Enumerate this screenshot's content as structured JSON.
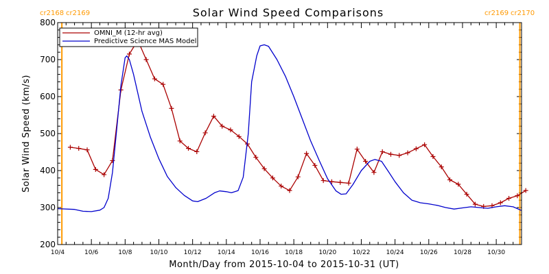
{
  "title": "Solar Wind Speed Comparisons",
  "cr_labels": {
    "left": [
      "cr2168",
      "cr2169"
    ],
    "right": [
      "cr2169",
      "cr2170"
    ]
  },
  "colors": {
    "omni": "#aa0000",
    "model": "#0000cc",
    "boundary": "#ff9900",
    "cr_text": "#ff9900",
    "axis": "#000000"
  },
  "chart_data": {
    "type": "line",
    "title": "Solar Wind Speed Comparisons",
    "xlabel": "Month/Day from 2015-10-04 to 2015-10-31 (UT)",
    "ylabel": "Solar Wind Speed (km/s)",
    "xlim": [
      0,
      27.5
    ],
    "ylim": [
      200,
      800
    ],
    "x_tick_values": [
      0,
      2,
      4,
      6,
      8,
      10,
      12,
      14,
      16,
      18,
      20,
      22,
      24,
      26
    ],
    "x_tick_labels": [
      "10/4",
      "10/6",
      "10/8",
      "10/10",
      "10/12",
      "10/14",
      "10/16",
      "10/18",
      "10/20",
      "10/22",
      "10/24",
      "10/26",
      "10/28",
      "10/30"
    ],
    "y_ticks": [
      200,
      300,
      400,
      500,
      600,
      700,
      800
    ],
    "y_minor_step": 20,
    "x_minor_step": 0.5,
    "vertical_markers": [
      0.25,
      27.4
    ],
    "legend": {
      "position": "top-left"
    },
    "series": [
      {
        "name": "OMNI_M (12-hr avg)",
        "style": "line-plus",
        "points": [
          [
            0.75,
            463
          ],
          [
            1.25,
            460
          ],
          [
            1.75,
            456
          ],
          [
            2.25,
            403
          ],
          [
            2.75,
            389
          ],
          [
            3.25,
            427
          ],
          [
            3.75,
            618
          ],
          [
            4.25,
            715
          ],
          [
            4.75,
            752
          ],
          [
            5.25,
            700
          ],
          [
            5.75,
            648
          ],
          [
            6.25,
            633
          ],
          [
            6.75,
            568
          ],
          [
            7.25,
            480
          ],
          [
            7.75,
            460
          ],
          [
            8.25,
            451
          ],
          [
            8.75,
            502
          ],
          [
            9.25,
            547
          ],
          [
            9.75,
            520
          ],
          [
            10.25,
            510
          ],
          [
            10.75,
            492
          ],
          [
            11.25,
            472
          ],
          [
            11.75,
            436
          ],
          [
            12.25,
            405
          ],
          [
            12.75,
            380
          ],
          [
            13.25,
            358
          ],
          [
            13.75,
            346
          ],
          [
            14.25,
            383
          ],
          [
            14.75,
            446
          ],
          [
            15.25,
            414
          ],
          [
            15.75,
            373
          ],
          [
            16.25,
            370
          ],
          [
            16.75,
            368
          ],
          [
            17.25,
            366
          ],
          [
            17.75,
            458
          ],
          [
            18.25,
            425
          ],
          [
            18.75,
            395
          ],
          [
            19.25,
            451
          ],
          [
            19.75,
            444
          ],
          [
            20.25,
            441
          ],
          [
            20.75,
            448
          ],
          [
            21.25,
            459
          ],
          [
            21.75,
            470
          ],
          [
            22.25,
            438
          ],
          [
            22.75,
            410
          ],
          [
            23.25,
            375
          ],
          [
            23.75,
            363
          ],
          [
            24.25,
            336
          ],
          [
            24.75,
            309
          ],
          [
            25.25,
            303
          ],
          [
            25.75,
            305
          ],
          [
            26.25,
            313
          ],
          [
            26.75,
            325
          ],
          [
            27.25,
            332
          ],
          [
            27.75,
            346
          ]
        ]
      },
      {
        "name": "Predictive Science MAS Model",
        "style": "line",
        "points": [
          [
            0,
            297
          ],
          [
            1,
            295
          ],
          [
            1.5,
            290
          ],
          [
            2,
            289
          ],
          [
            2.5,
            293
          ],
          [
            2.75,
            300
          ],
          [
            3,
            325
          ],
          [
            3.25,
            395
          ],
          [
            3.5,
            510
          ],
          [
            3.75,
            630
          ],
          [
            4,
            705
          ],
          [
            4.1,
            710
          ],
          [
            4.25,
            700
          ],
          [
            4.5,
            660
          ],
          [
            5,
            560
          ],
          [
            5.5,
            490
          ],
          [
            6,
            432
          ],
          [
            6.5,
            384
          ],
          [
            7,
            354
          ],
          [
            7.5,
            333
          ],
          [
            8,
            318
          ],
          [
            8.3,
            316
          ],
          [
            8.8,
            325
          ],
          [
            9.3,
            340
          ],
          [
            9.6,
            345
          ],
          [
            10,
            343
          ],
          [
            10.3,
            340
          ],
          [
            10.7,
            346
          ],
          [
            11,
            382
          ],
          [
            11.3,
            500
          ],
          [
            11.5,
            640
          ],
          [
            11.8,
            710
          ],
          [
            12,
            737
          ],
          [
            12.25,
            740
          ],
          [
            12.5,
            736
          ],
          [
            13,
            700
          ],
          [
            13.5,
            655
          ],
          [
            14,
            600
          ],
          [
            14.5,
            540
          ],
          [
            15,
            480
          ],
          [
            15.5,
            428
          ],
          [
            16,
            378
          ],
          [
            16.5,
            345
          ],
          [
            16.8,
            336
          ],
          [
            17.1,
            337
          ],
          [
            17.5,
            362
          ],
          [
            18,
            400
          ],
          [
            18.5,
            425
          ],
          [
            18.8,
            430
          ],
          [
            19.2,
            425
          ],
          [
            19.6,
            398
          ],
          [
            20,
            370
          ],
          [
            20.5,
            340
          ],
          [
            21,
            320
          ],
          [
            21.5,
            313
          ],
          [
            22,
            310
          ],
          [
            22.5,
            306
          ],
          [
            23,
            300
          ],
          [
            23.5,
            296
          ],
          [
            24,
            299
          ],
          [
            24.5,
            302
          ],
          [
            25,
            300
          ],
          [
            25.5,
            298
          ],
          [
            26,
            302
          ],
          [
            26.5,
            305
          ],
          [
            27,
            302
          ],
          [
            27.5,
            292
          ]
        ]
      }
    ]
  }
}
